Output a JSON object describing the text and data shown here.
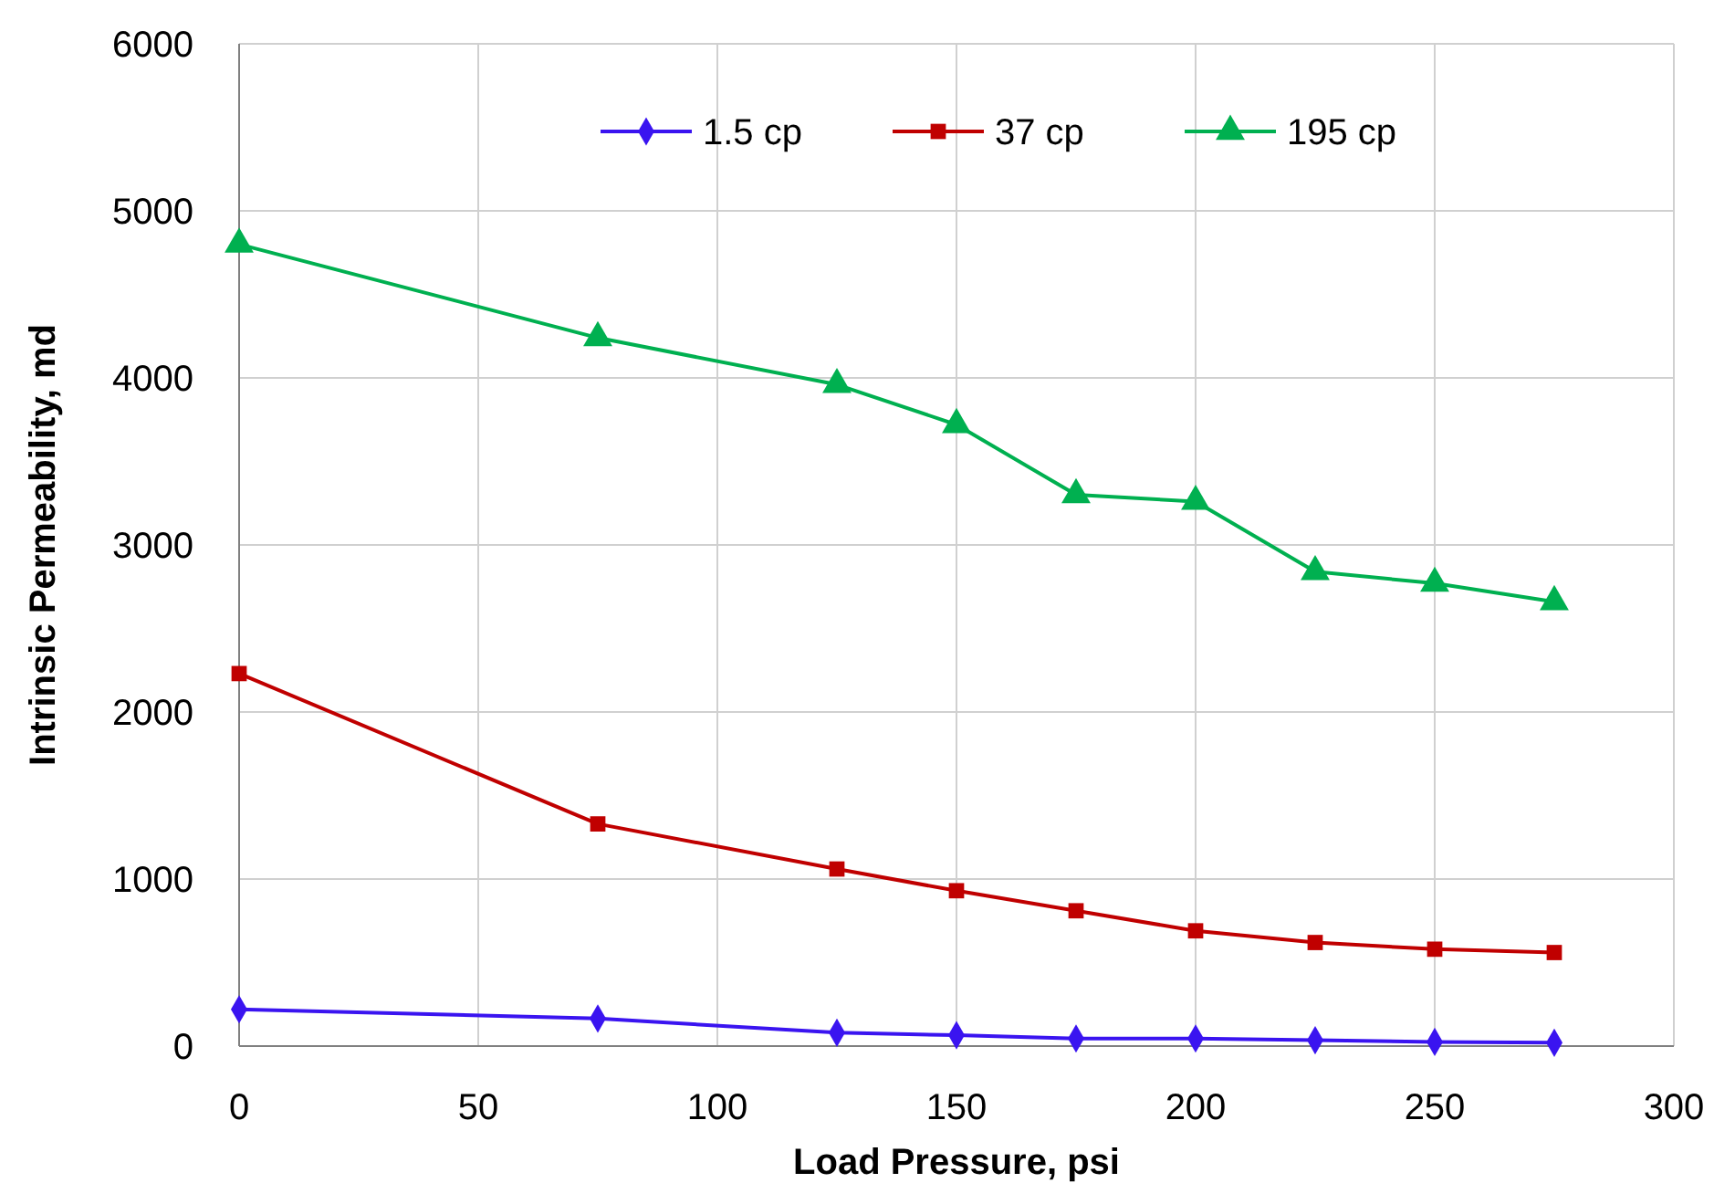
{
  "chart_data": {
    "type": "line",
    "xlabel": "Load Pressure, psi",
    "ylabel": "Intrinsic Permeability, md",
    "x": [
      0,
      75,
      125,
      150,
      175,
      200,
      225,
      250,
      275
    ],
    "series": [
      {
        "name": "1.5 cp",
        "color": "#3a14f0",
        "marker": "diamond",
        "values": [
          220,
          165,
          80,
          65,
          45,
          45,
          35,
          25,
          20
        ]
      },
      {
        "name": "37 cp",
        "color": "#c00000",
        "marker": "square",
        "values": [
          2230,
          1330,
          1060,
          930,
          810,
          690,
          620,
          580,
          560
        ]
      },
      {
        "name": "195 cp",
        "color": "#00b050",
        "marker": "triangle",
        "values": [
          4800,
          4240,
          3960,
          3720,
          3300,
          3260,
          2840,
          2770,
          2660
        ]
      }
    ],
    "xlim": [
      0,
      300
    ],
    "xticks": [
      0,
      50,
      100,
      150,
      200,
      250,
      300
    ],
    "ylim": [
      0,
      6000
    ],
    "yticks": [
      0,
      1000,
      2000,
      3000,
      4000,
      5000,
      6000
    ],
    "grid": true,
    "legend": "top"
  }
}
